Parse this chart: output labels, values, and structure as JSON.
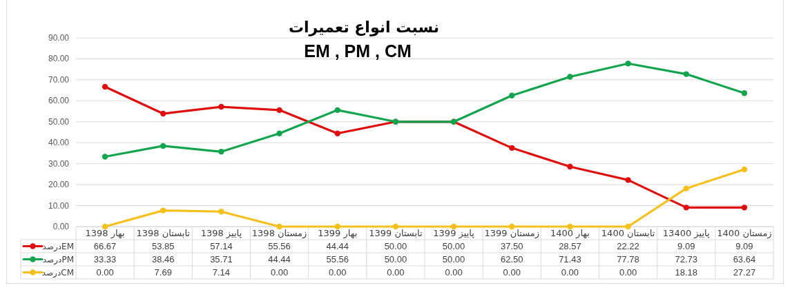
{
  "chart_data": {
    "type": "line",
    "title": "نسبت انواع تعمیرات",
    "subtitle": "EM , PM , CM",
    "categories": [
      "بهار 1398",
      "تابستان 1398",
      "پاییز 1398",
      "زمستان 1398",
      "بهار 1399",
      "تابستان 1399",
      "پاییز 1399",
      "زمستان 1399",
      "بهار 1400",
      "تابستان 1400",
      "پاییز 13400",
      "زمستان 1400"
    ],
    "series": [
      {
        "name": "درصدEM",
        "color": "#e00d0d",
        "values": [
          66.67,
          53.85,
          57.14,
          55.56,
          44.44,
          50,
          50,
          37.5,
          28.57,
          22.22,
          9.09,
          9.09
        ],
        "value_labels": [
          "66.67",
          "53.85",
          "57.14",
          "55.56",
          "44.44",
          "50.00",
          "50.00",
          "37.50",
          "28.57",
          "22.22",
          "9.09",
          "9.09"
        ]
      },
      {
        "name": "درصدPM",
        "color": "#12a54e",
        "values": [
          33.33,
          38.46,
          35.71,
          44.44,
          55.56,
          50,
          50,
          62.5,
          71.43,
          77.78,
          72.73,
          63.64
        ],
        "value_labels": [
          "33.33",
          "38.46",
          "35.71",
          "44.44",
          "55.56",
          "50.00",
          "50.00",
          "62.50",
          "71.43",
          "77.78",
          "72.73",
          "63.64"
        ]
      },
      {
        "name": "درصدCM",
        "color": "#f5bf1c",
        "values": [
          0,
          7.69,
          7.14,
          0,
          0,
          0,
          0,
          0,
          0,
          0,
          18.18,
          27.27
        ],
        "value_labels": [
          "0.00",
          "7.69",
          "7.14",
          "0.00",
          "0.00",
          "0.00",
          "0.00",
          "0.00",
          "0.00",
          "0.00",
          "18.18",
          "27.27"
        ]
      }
    ],
    "ylim": [
      0,
      90
    ],
    "yticks": [
      {
        "value": 0,
        "label": "0.00"
      },
      {
        "value": 10,
        "label": "10.00"
      },
      {
        "value": 20,
        "label": "20.00"
      },
      {
        "value": 30,
        "label": "30.00"
      },
      {
        "value": 40,
        "label": "40.00"
      },
      {
        "value": 50,
        "label": "50.00"
      },
      {
        "value": 60,
        "label": "60.00"
      },
      {
        "value": 70,
        "label": "70.00"
      },
      {
        "value": 80,
        "label": "80.00"
      },
      {
        "value": 90,
        "label": "90.00"
      }
    ],
    "grid": "y",
    "legend": "bottom",
    "marker": "circle",
    "line_style": "solid"
  }
}
